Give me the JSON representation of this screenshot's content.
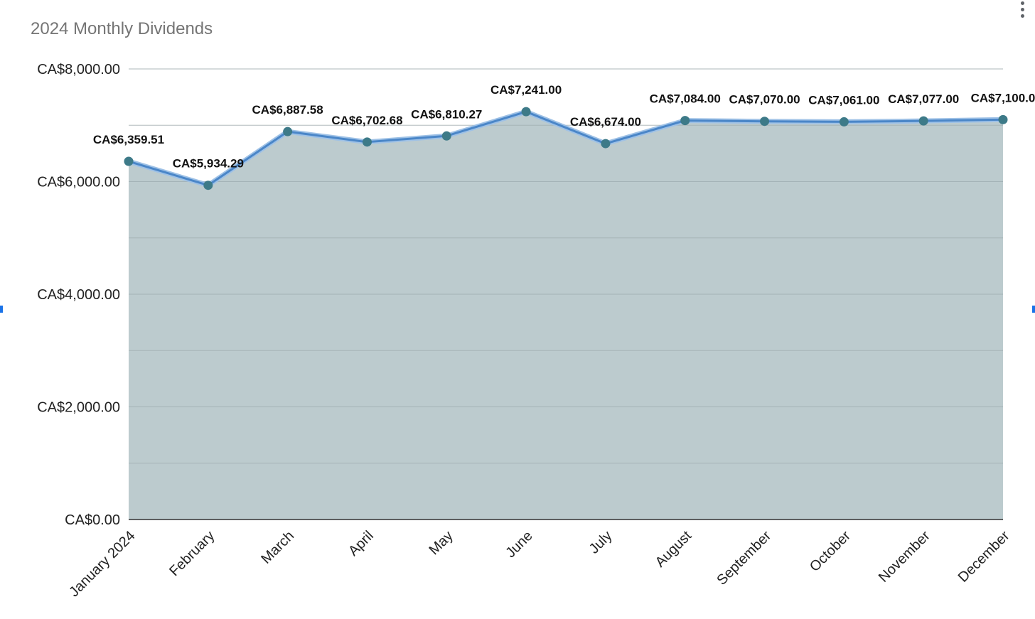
{
  "chart_data": {
    "type": "area",
    "title": "2024 Monthly Dividends",
    "xlabel": "",
    "ylabel": "",
    "categories": [
      "January 2024",
      "February",
      "March",
      "April",
      "May",
      "June",
      "July",
      "August",
      "September",
      "October",
      "November",
      "December"
    ],
    "values": [
      6359.51,
      5934.29,
      6887.58,
      6702.68,
      6810.27,
      7241.0,
      6674.0,
      7084.0,
      7070.0,
      7061.0,
      7077.0,
      7100.0
    ],
    "data_labels": [
      "CA$6,359.51",
      "CA$5,934.29",
      "CA$6,887.58",
      "CA$6,702.68",
      "CA$6,810.27",
      "CA$7,241.00",
      "CA$6,674.00",
      "CA$7,084.00",
      "CA$7,070.00",
      "CA$7,061.00",
      "CA$7,077.00",
      "CA$7,100.0"
    ],
    "ylim": [
      0,
      8000
    ],
    "yticks": [
      0,
      2000,
      4000,
      6000,
      8000
    ],
    "ytick_labels": [
      "CA$0.00",
      "CA$2,000.00",
      "CA$4,000.00",
      "CA$6,000.00",
      "CA$8,000.00"
    ],
    "minor_gridlines": [
      1000,
      3000,
      5000,
      7000
    ],
    "grid": true,
    "legend": "none",
    "colors": {
      "line": "#4a86c8",
      "fill": "#b0c2c5",
      "marker": "#3d7a88",
      "grid": "#cccccc",
      "baseline": "#333333"
    }
  }
}
